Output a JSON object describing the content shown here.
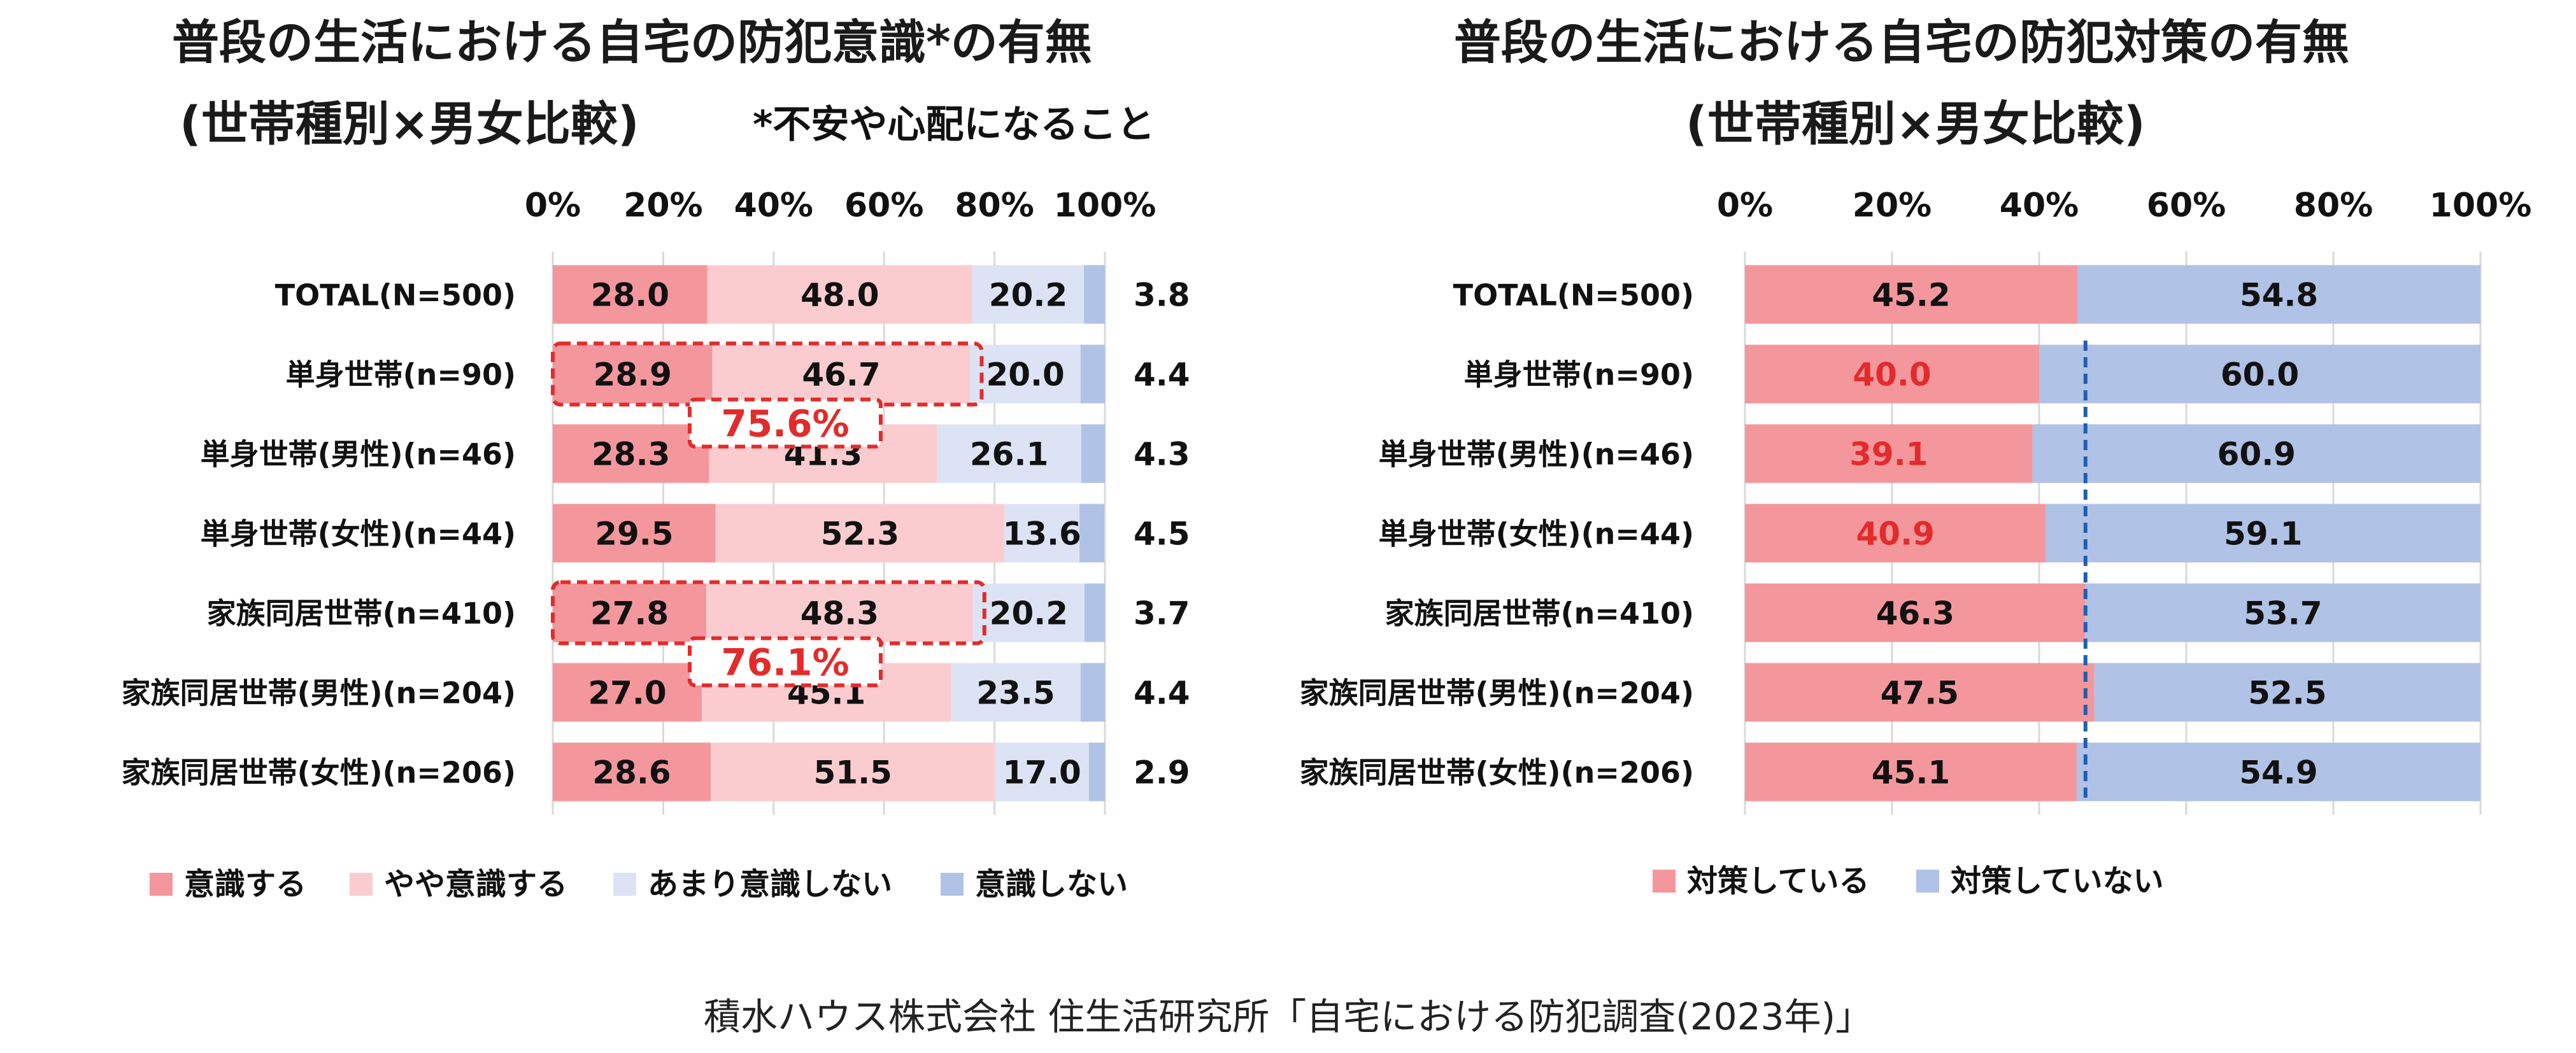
{
  "colors": {
    "ishiki_suru": "#f4979d",
    "yaya_ishiki": "#fbcccf",
    "amari": "#dce3f4",
    "ishiki_shinai": "#b0c2e5",
    "taisaku_shiteiru": "#f4979d",
    "taisaku_shiteinai": "#b0c2e5",
    "highlight_red": "#e32b2b",
    "dashed_blue": "#1f5fb4",
    "gridline": "#d9d9d9"
  },
  "left": {
    "title_line1": "普段の生活における自宅の防犯意識*の有無",
    "title_line2": "(世帯種別×男女比較)",
    "footnote": "*不安や心配になること"
  },
  "right": {
    "title_line1": "普段の生活における自宅の防犯対策の有無",
    "title_line2": "(世帯種別×男女比較)"
  },
  "source": "積水ハウス株式会社 住生活研究所「自宅における防犯調査(2023年)」",
  "chart_data": [
    {
      "type": "bar",
      "orientation": "horizontal",
      "stacked": true,
      "percent_stacked": true,
      "title": "普段の生活における自宅の防犯意識*の有無 (世帯種別×男女比較)",
      "xlim": [
        0,
        100
      ],
      "xticks": [
        "0%",
        "20%",
        "40%",
        "60%",
        "80%",
        "100%"
      ],
      "grid": true,
      "legend": "bottom",
      "categories": [
        "TOTAL(N=500)",
        "単身世帯(n=90)",
        "単身世帯(男性)(n=46)",
        "単身世帯(女性)(n=44)",
        "家族同居世帯(n=410)",
        "家族同居世帯(男性)(n=204)",
        "家族同居世帯(女性)(n=206)"
      ],
      "series": [
        {
          "name": "意識する",
          "color": "#f4979d",
          "values": [
            28.0,
            28.9,
            28.3,
            29.5,
            27.8,
            27.0,
            28.6
          ]
        },
        {
          "name": "やや意識する",
          "color": "#fbcccf",
          "values": [
            48.0,
            46.7,
            41.3,
            52.3,
            48.3,
            45.1,
            51.5
          ]
        },
        {
          "name": "あまり意識しない",
          "color": "#dce3f4",
          "values": [
            20.2,
            20.0,
            26.1,
            13.6,
            20.2,
            23.5,
            17.0
          ]
        },
        {
          "name": "意識しない",
          "color": "#b0c2e5",
          "values": [
            3.8,
            4.4,
            4.3,
            4.5,
            3.7,
            4.4,
            2.9
          ]
        }
      ],
      "annotations": [
        {
          "category": "単身世帯(n=90)",
          "text": "75.6%"
        },
        {
          "category": "家族同居世帯(n=410)",
          "text": "76.1%"
        }
      ]
    },
    {
      "type": "bar",
      "orientation": "horizontal",
      "stacked": true,
      "percent_stacked": true,
      "title": "普段の生活における自宅の防犯対策の有無 (世帯種別×男女比較)",
      "xlim": [
        0,
        100
      ],
      "xticks": [
        "0%",
        "20%",
        "40%",
        "60%",
        "80%",
        "100%"
      ],
      "grid": true,
      "legend": "bottom",
      "categories": [
        "TOTAL(N=500)",
        "単身世帯(n=90)",
        "単身世帯(男性)(n=46)",
        "単身世帯(女性)(n=44)",
        "家族同居世帯(n=410)",
        "家族同居世帯(男性)(n=204)",
        "家族同居世帯(女性)(n=206)"
      ],
      "series": [
        {
          "name": "対策している",
          "color": "#f4979d",
          "values": [
            45.2,
            40.0,
            39.1,
            40.9,
            46.3,
            47.5,
            45.1
          ]
        },
        {
          "name": "対策していない",
          "color": "#b0c2e5",
          "values": [
            54.8,
            60.0,
            60.9,
            59.1,
            53.7,
            52.5,
            54.9
          ]
        }
      ],
      "red_value_categories": [
        "単身世帯(n=90)",
        "単身世帯(男性)(n=46)",
        "単身世帯(女性)(n=44)"
      ],
      "reference_line": 46.3
    }
  ]
}
